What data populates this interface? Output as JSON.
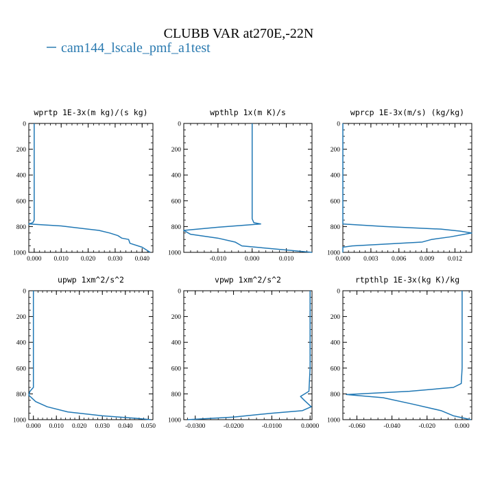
{
  "page": {
    "title": "CLUBB VAR at270E,-22N",
    "legend_label": "cam144_lscale_pmf_a1test",
    "legend_color": "#2a7ab0",
    "line_color": "#1f77b4"
  },
  "chart_data": [
    {
      "type": "line",
      "title": "wprtp  1E-3x(m kg)/(s kg)",
      "xlim": [
        -0.002,
        0.044
      ],
      "ylim": [
        1000,
        0
      ],
      "xticks": [
        0.0,
        0.01,
        0.02,
        0.03,
        0.04
      ],
      "xtick_labels": [
        "0.000",
        "0.010",
        "0.020",
        "0.030",
        "0.040"
      ],
      "yticks": [
        0,
        200,
        400,
        600,
        800,
        1000
      ],
      "ytick_labels": [
        "0",
        "200",
        "400",
        "600",
        "800",
        "1000"
      ],
      "series": [
        {
          "x": [
            0.0,
            0.0,
            0.0,
            0.0,
            0.0,
            -0.0005,
            -0.002,
            0.01,
            0.024,
            0.028,
            0.031,
            0.0325,
            0.035,
            0.0355,
            0.04,
            0.043
          ],
          "y": [
            0,
            200,
            400,
            600,
            750,
            770,
            780,
            795,
            830,
            850,
            870,
            890,
            900,
            930,
            960,
            1000
          ]
        }
      ]
    },
    {
      "type": "line",
      "title": "wpthlp  1x(m K)/s",
      "xlim": [
        -0.02,
        0.0175
      ],
      "ylim": [
        1000,
        0
      ],
      "xticks": [
        -0.01,
        0.0,
        0.01
      ],
      "xtick_labels": [
        "-0.010",
        "0.000",
        "0.010"
      ],
      "yticks": [
        0,
        200,
        400,
        600,
        800,
        1000
      ],
      "ytick_labels": [
        "0",
        "200",
        "400",
        "600",
        "800",
        "1000"
      ],
      "series": [
        {
          "x": [
            0.0,
            0.0,
            0.0,
            0.0,
            0.0,
            0.0005,
            0.0025,
            -0.01,
            -0.02,
            -0.018,
            -0.01,
            -0.005,
            -0.003,
            0.0175
          ],
          "y": [
            0,
            200,
            400,
            600,
            740,
            770,
            780,
            805,
            830,
            860,
            890,
            920,
            950,
            1000
          ]
        }
      ]
    },
    {
      "type": "line",
      "title": "wprcp  1E-3x(m/s) (kg/kg)",
      "xlim": [
        0.0,
        0.0138
      ],
      "ylim": [
        1000,
        0
      ],
      "xticks": [
        0.0,
        0.003,
        0.006,
        0.009,
        0.012
      ],
      "xtick_labels": [
        "0.000",
        "0.003",
        "0.006",
        "0.009",
        "0.012"
      ],
      "series": [
        {
          "x": [
            0.0,
            0.0,
            0.0,
            0.0,
            0.0,
            0.0045,
            0.0105,
            0.0125,
            0.0138,
            0.0115,
            0.0095,
            0.0085,
            0.001,
            0.0,
            0.0
          ],
          "y": [
            0,
            200,
            400,
            600,
            780,
            800,
            820,
            835,
            850,
            880,
            900,
            920,
            950,
            960,
            1000
          ]
        }
      ],
      "yticks": [
        0,
        200,
        400,
        600,
        800,
        1000
      ],
      "ytick_labels": [
        "0",
        "200",
        "400",
        "600",
        "800",
        "1000"
      ]
    },
    {
      "type": "line",
      "title": "upwp  1xm^2/s^2",
      "xlim": [
        -0.002,
        0.052
      ],
      "ylim": [
        1000,
        0
      ],
      "xticks": [
        0.0,
        0.01,
        0.02,
        0.03,
        0.04,
        0.05
      ],
      "xtick_labels": [
        "0.000",
        "0.010",
        "0.020",
        "0.030",
        "0.040",
        "0.050"
      ],
      "yticks": [
        0,
        200,
        400,
        600,
        800,
        1000
      ],
      "ytick_labels": [
        "0",
        "200",
        "400",
        "600",
        "800",
        "1000"
      ],
      "series": [
        {
          "x": [
            0.0,
            0.0,
            0.0,
            0.0,
            0.0,
            -0.0015,
            -0.002,
            0.001,
            0.006,
            0.015,
            0.03,
            0.045,
            0.051
          ],
          "y": [
            0,
            200,
            400,
            600,
            750,
            780,
            810,
            860,
            900,
            940,
            970,
            990,
            1000
          ]
        }
      ]
    },
    {
      "type": "line",
      "title": "vpwp  1xm^2/s^2",
      "xlim": [
        -0.033,
        0.0005
      ],
      "ylim": [
        1000,
        0
      ],
      "xticks": [
        -0.03,
        -0.02,
        -0.01,
        0.0
      ],
      "xtick_labels": [
        "-0.0300",
        "-0.0200",
        "-0.0100",
        "0.0000"
      ],
      "yticks": [
        0,
        200,
        400,
        600,
        800,
        1000
      ],
      "ytick_labels": [
        "0",
        "200",
        "400",
        "600",
        "800",
        "1000"
      ],
      "series": [
        {
          "x": [
            0.0,
            0.0,
            0.0,
            0.0,
            -0.0003,
            -0.0025,
            -0.0015,
            0.0003,
            -0.002,
            -0.01,
            -0.02,
            -0.032
          ],
          "y": [
            0,
            200,
            400,
            600,
            780,
            820,
            850,
            900,
            930,
            950,
            980,
            1000
          ]
        }
      ]
    },
    {
      "type": "line",
      "title": "rtpthlp  1E-3x(kg K)/kg",
      "xlim": [
        -0.068,
        0.0055
      ],
      "ylim": [
        1000,
        0
      ],
      "xticks": [
        -0.06,
        -0.04,
        -0.02,
        0.0
      ],
      "xtick_labels": [
        "-0.060",
        "-0.040",
        "-0.020",
        "0.000"
      ],
      "yticks": [
        0,
        200,
        400,
        600,
        800,
        1000
      ],
      "ytick_labels": [
        "0",
        "200",
        "400",
        "600",
        "800",
        "1000"
      ],
      "series": [
        {
          "x": [
            0.0,
            0.0,
            0.0,
            0.0,
            -0.0005,
            -0.005,
            -0.03,
            -0.066,
            -0.045,
            -0.028,
            -0.012,
            -0.005,
            0.005
          ],
          "y": [
            0,
            200,
            400,
            600,
            720,
            750,
            780,
            805,
            830,
            880,
            930,
            970,
            1000
          ]
        }
      ]
    }
  ]
}
